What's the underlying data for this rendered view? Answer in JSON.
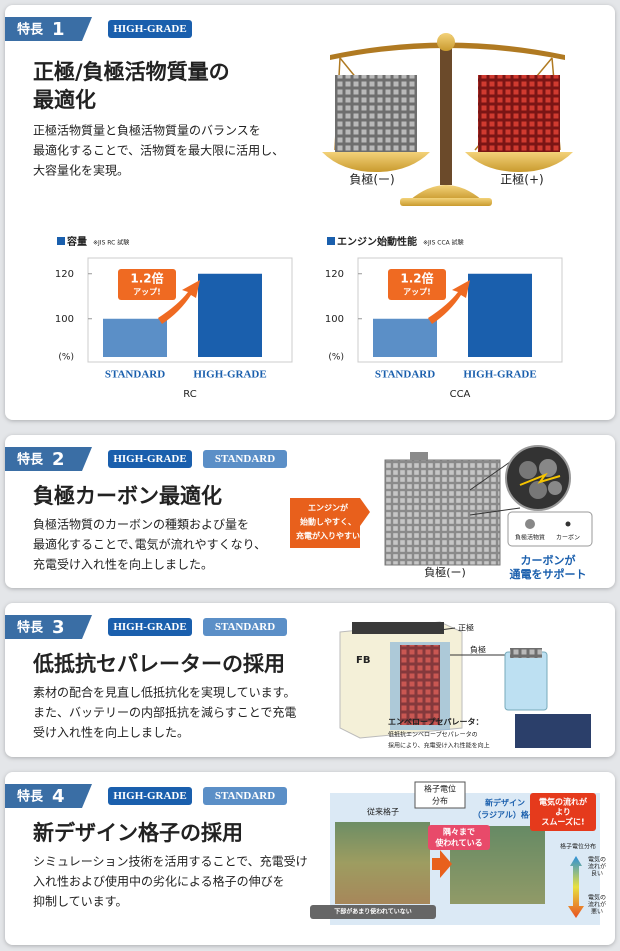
{
  "features": [
    {
      "label": "特長",
      "number": 1,
      "tags": [
        "HIGH-GRADE"
      ],
      "title": [
        "正極/負極活物質量の",
        "最適化"
      ],
      "description": [
        "正極活物質量と負極活物質量のバランスを",
        "最適化することで、活物質を最大限に活用し、",
        "大容量化を実現。"
      ],
      "illustration": {
        "negative": "負極(ー)",
        "positive": "正極(+)"
      },
      "charts": [
        {
          "type": "bar",
          "title": "容量",
          "note": "※JIS RC 試験",
          "categories": [
            "STANDARD",
            "HIGH-GRADE"
          ],
          "values": [
            100,
            120
          ],
          "colors": [
            "#5b8fc7",
            "#1a5fad"
          ],
          "ylim": [
            83,
            127
          ],
          "yticks": [
            100,
            120
          ],
          "unit": "(%)",
          "xlabel": "RC",
          "callout": [
            "1.2倍",
            "アップ!"
          ]
        },
        {
          "type": "bar",
          "title": "エンジン始動性能",
          "note": "※JIS CCA 試験",
          "categories": [
            "STANDARD",
            "HIGH-GRADE"
          ],
          "values": [
            100,
            120
          ],
          "colors": [
            "#5b8fc7",
            "#1a5fad"
          ],
          "ylim": [
            83,
            127
          ],
          "yticks": [
            100,
            120
          ],
          "unit": "(%)",
          "xlabel": "CCA",
          "callout": [
            "1.2倍",
            "アップ!"
          ]
        }
      ]
    },
    {
      "label": "特長",
      "number": 2,
      "tags": [
        "HIGH-GRADE",
        "STANDARD"
      ],
      "title": [
        "負極カーボン最適化"
      ],
      "description": [
        "負極活物質のカーボンの種類および量を",
        "最適化することで､電気が流れやすくなり、",
        "充電受け入れ性を向上しました。"
      ],
      "illustration": {
        "callout": [
          "エンジンが",
          "始動しやすく、",
          "充電が入りやすい"
        ],
        "legend": [
          "負極活物質",
          "カーボン"
        ],
        "plate": "負極(ー)",
        "support": [
          "カーボンが",
          "通電をサポート"
        ]
      }
    },
    {
      "label": "特長",
      "number": 3,
      "tags": [
        "HIGH-GRADE",
        "STANDARD"
      ],
      "title": [
        "低抵抗セパレーターの採用"
      ],
      "description": [
        "素材の配合を見直し低抵抗化を実現しています。",
        "また、バッテリーの内部抵抗を減らすことで充電",
        "受け入れ性を向上しました。"
      ],
      "illustration": {
        "brand": "FB",
        "positive": "正極",
        "negative": "負極",
        "separator": [
          "エンベロープセパレータ：",
          "低抵抗エンベロープセパレータの",
          "採用により、充電受け入れ性能を向上"
        ]
      }
    },
    {
      "label": "特長",
      "number": 4,
      "tags": [
        "HIGH-GRADE",
        "STANDARD"
      ],
      "title": [
        "新デザイン格子の採用"
      ],
      "description": [
        "シミュレーション技術を活用することで、充電受け",
        "入れ性および使用中の劣化による格子の伸びを",
        "抑制しています。"
      ],
      "illustration": {
        "box": [
          "格子電位",
          "分布"
        ],
        "old": "従来格子",
        "new": [
          "新デザイン",
          "（ラジアル）格子"
        ],
        "corners": [
          "隅々まで",
          "使われている"
        ],
        "smooth": [
          "電気の流れが",
          "より",
          "スムーズに!"
        ],
        "bottom": "下部があまり使われていない",
        "scale": "格子電位分布",
        "good": [
          "電気の",
          "流れが",
          "良い"
        ],
        "bad": [
          "電気の",
          "流れが",
          "悪い"
        ]
      }
    }
  ]
}
